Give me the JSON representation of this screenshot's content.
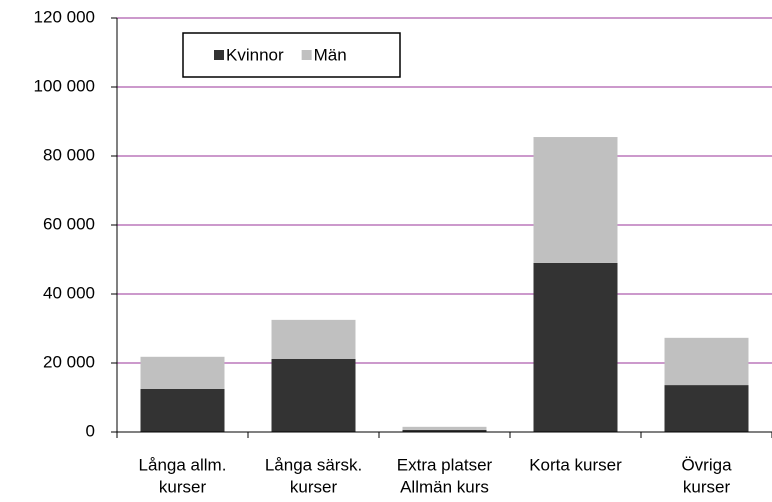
{
  "chart_data": {
    "type": "bar",
    "stacked": true,
    "categories": [
      [
        "Långa allm.",
        "kurser"
      ],
      [
        "Långa särsk.",
        "kurser"
      ],
      [
        "Extra platser",
        "Allmän kurs"
      ],
      [
        "Korta kurser"
      ],
      [
        "Övriga",
        "kurser"
      ]
    ],
    "series": [
      {
        "name": "Kvinnor",
        "color": "#333333",
        "values": [
          12500,
          21200,
          600,
          49000,
          13600
        ]
      },
      {
        "name": "Män",
        "color": "#c0c0c0",
        "values": [
          9300,
          11300,
          900,
          36500,
          13700
        ]
      }
    ],
    "ylim": [
      0,
      120000
    ],
    "yticks": [
      0,
      {
        "value": 20000,
        "label": "20 000"
      },
      {
        "value": 40000,
        "label": "40 000"
      },
      {
        "value": 60000,
        "label": "60 000"
      },
      {
        "value": 80000,
        "label": "80 000"
      },
      {
        "value": 100000,
        "label": "100 000"
      },
      {
        "value": 120000,
        "label": "120 000"
      }
    ],
    "grid": true,
    "grid_color": "#993399",
    "legend": "top-left"
  }
}
